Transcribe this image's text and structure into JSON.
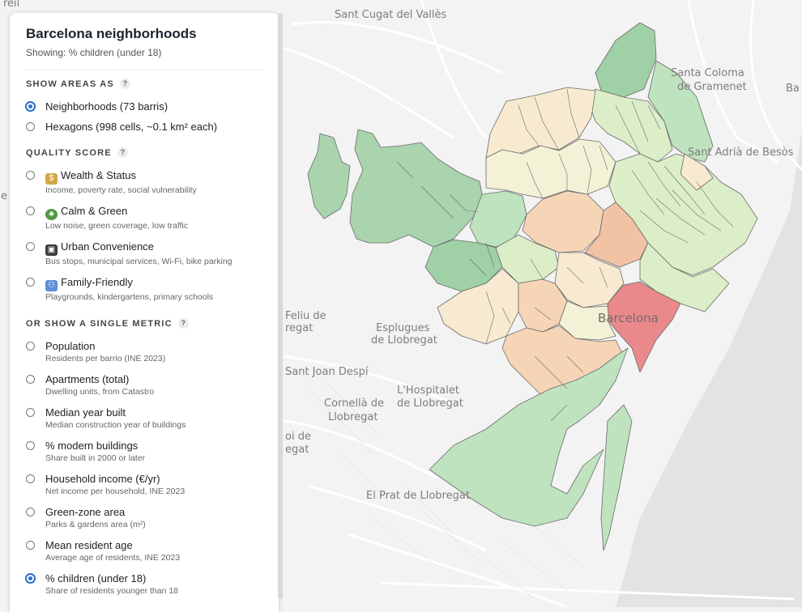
{
  "panel": {
    "title": "Barcelona neighborhoods",
    "subtitle": "Showing: % children (under 18)",
    "show_areas": {
      "heading": "SHOW AREAS AS",
      "help": "?",
      "options": [
        {
          "label": "Neighborhoods (73 barris)",
          "selected": true
        },
        {
          "label": "Hexagons (998 cells, ~0.1 km² each)",
          "selected": false
        }
      ]
    },
    "quality": {
      "heading": "QUALITY SCORE",
      "help": "?",
      "options": [
        {
          "icon": "money-bag-icon",
          "label": "Wealth & Status",
          "desc": "Income, poverty rate, social vulnerability"
        },
        {
          "icon": "tree-icon",
          "label": "Calm & Green",
          "desc": "Low noise, green coverage, low traffic"
        },
        {
          "icon": "bus-icon",
          "label": "Urban Convenience",
          "desc": "Bus stops, municipal services, Wi-Fi, bike parking"
        },
        {
          "icon": "family-icon",
          "label": "Family-Friendly",
          "desc": "Playgrounds, kindergartens, primary schools"
        }
      ]
    },
    "metric": {
      "heading": "OR SHOW A SINGLE METRIC",
      "help": "?",
      "options": [
        {
          "label": "Population",
          "desc": "Residents per barrio (INE 2023)",
          "selected": false
        },
        {
          "label": "Apartments (total)",
          "desc": "Dwelling units, from Catastro",
          "selected": false
        },
        {
          "label": "Median year built",
          "desc": "Median construction year of buildings",
          "selected": false
        },
        {
          "label": "% modern buildings",
          "desc": "Share built in 2000 or later",
          "selected": false
        },
        {
          "label": "Household income (€/yr)",
          "desc": "Net income per household, INE 2023",
          "selected": false
        },
        {
          "label": "Green-zone area",
          "desc": "Parks & gardens area (m²)",
          "selected": false
        },
        {
          "label": "Mean resident age",
          "desc": "Average age of residents, INE 2023",
          "selected": false
        },
        {
          "label": "% children (under 18)",
          "desc": "Share of residents younger than 18",
          "selected": true
        }
      ]
    }
  },
  "map": {
    "places": {
      "sant_cugat": "Sant Cugat del Vallès",
      "santa_coloma_1": "Santa Coloma",
      "santa_coloma_2": "de Gramenet",
      "sant_adria": "Sant Adrià de Besòs",
      "badalona": "Ba",
      "barcelona": "Barcelona",
      "esplugues_1": "Esplugues",
      "esplugues_2": "de Llobregat",
      "feliu_1": "Feliu de",
      "feliu_2": "regat",
      "sant_joan": "Sant Joan Despí",
      "hospitalet_1": "L'Hospitalet",
      "hospitalet_2": "de Llobregat",
      "cornella_1": "Cornellà de",
      "cornella_2": "Llobregat",
      "boi_1": "oi de",
      "boi_2": "egat",
      "prat": "El Prat de Llobregat",
      "reil": "reil",
      "e_left": "e"
    },
    "colors": {
      "green_dark": "#9fd0a6",
      "green": "#bfe2bf",
      "green_light": "#dbeec8",
      "yellow": "#f3f2d6",
      "cream": "#f7ead0",
      "peach": "#f6d5b6",
      "orange": "#f2c2a4",
      "red": "#e9898c"
    }
  }
}
